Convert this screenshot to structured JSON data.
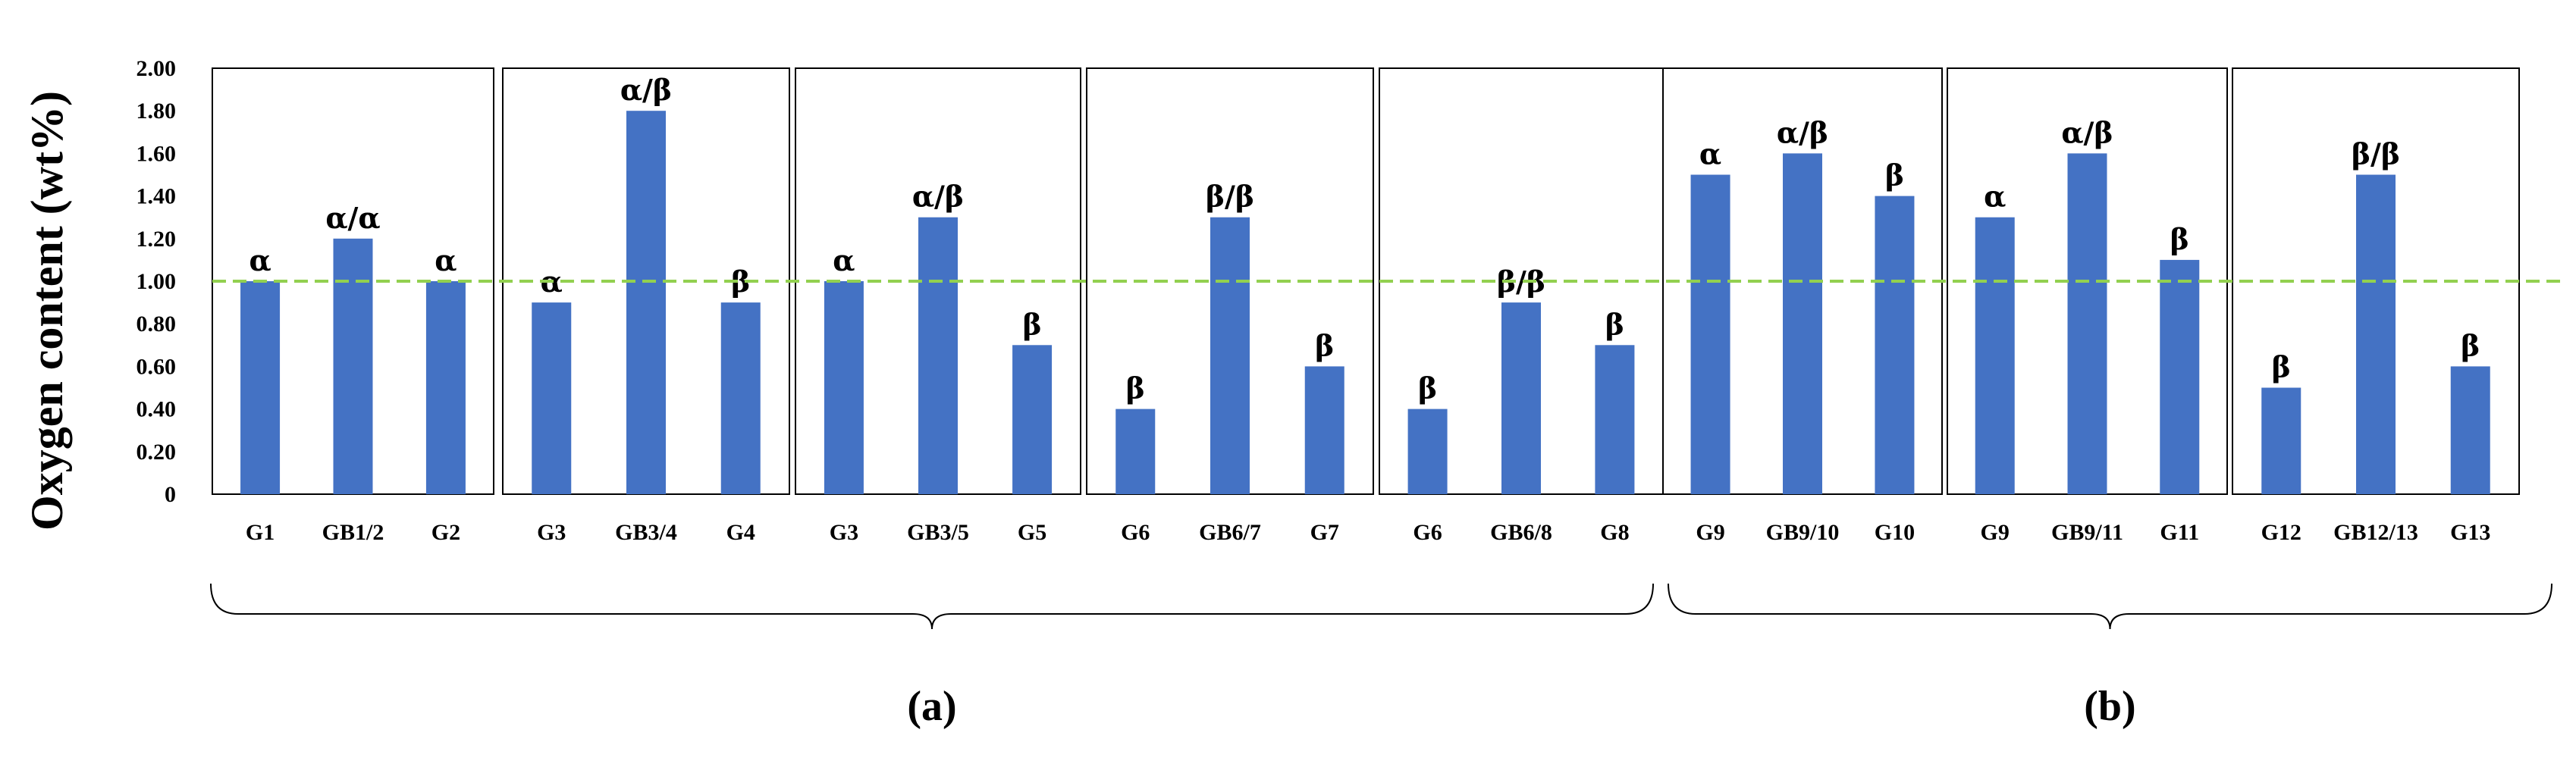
{
  "chart_data": {
    "type": "bar",
    "ylabel": "Oxygen content  (wt%)",
    "ylim": [
      0,
      2.0
    ],
    "yticks": [
      "0",
      "0.20",
      "0.40",
      "0.60",
      "0.80",
      "1.00",
      "1.20",
      "1.40",
      "1.60",
      "1.80",
      "2.00"
    ],
    "bar_color": "#4472C4",
    "reference_line": {
      "value": 1.0,
      "color": "#92D050",
      "style": "dashed"
    },
    "panels": [
      {
        "categories": [
          "G1",
          "GB1/2",
          "G2"
        ],
        "values": [
          1.0,
          1.2,
          1.0
        ],
        "phase_labels": [
          "α",
          "α/α",
          "α"
        ]
      },
      {
        "categories": [
          "G3",
          "GB3/4",
          "G4"
        ],
        "values": [
          0.9,
          1.8,
          0.9
        ],
        "phase_labels": [
          "α",
          "α/β",
          "β"
        ]
      },
      {
        "categories": [
          "G3",
          "GB3/5",
          "G5"
        ],
        "values": [
          1.0,
          1.3,
          0.7
        ],
        "phase_labels": [
          "α",
          "α/β",
          "β"
        ]
      },
      {
        "categories": [
          "G6",
          "GB6/7",
          "G7"
        ],
        "values": [
          0.4,
          1.3,
          0.6
        ],
        "phase_labels": [
          "β",
          "β/β",
          "β"
        ]
      },
      {
        "categories": [
          "G6",
          "GB6/8",
          "G8"
        ],
        "values": [
          0.4,
          0.9,
          0.7
        ],
        "phase_labels": [
          "β",
          "β/β",
          "β"
        ]
      },
      {
        "categories": [
          "G9",
          "GB9/10",
          "G10"
        ],
        "values": [
          1.5,
          1.6,
          1.4
        ],
        "phase_labels": [
          "α",
          "α/β",
          "β"
        ]
      },
      {
        "categories": [
          "G9",
          "GB9/11",
          "G11"
        ],
        "values": [
          1.3,
          1.6,
          1.1
        ],
        "phase_labels": [
          "α",
          "α/β",
          "β"
        ]
      },
      {
        "categories": [
          "G12",
          "GB12/13",
          "G13"
        ],
        "values": [
          0.5,
          1.5,
          0.6
        ],
        "phase_labels": [
          "β",
          "β/β",
          "β"
        ]
      }
    ],
    "groups": [
      {
        "label": "(a)",
        "panels": [
          0,
          1,
          2,
          3,
          4
        ]
      },
      {
        "label": "(b)",
        "panels": [
          5,
          6,
          7
        ]
      }
    ]
  }
}
